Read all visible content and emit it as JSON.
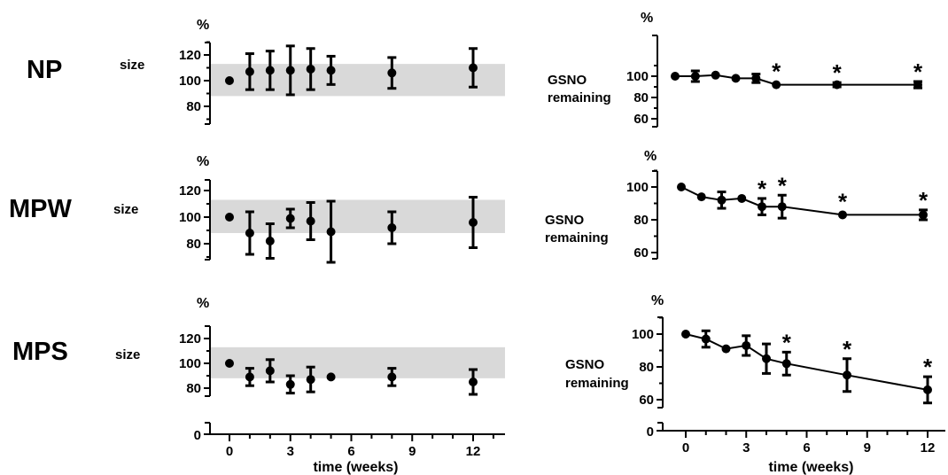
{
  "chart_data": [
    {
      "id": "np_size",
      "type": "scatter",
      "row_label": "NP",
      "ylabel": "size",
      "unit": "%",
      "ylim": [
        60,
        130
      ],
      "yticks": [
        80,
        100,
        120
      ],
      "band": [
        88,
        113
      ],
      "points": [
        {
          "x": 0,
          "y": 100,
          "err": 0
        },
        {
          "x": 1,
          "y": 107,
          "err": 14
        },
        {
          "x": 2,
          "y": 108,
          "err": 15
        },
        {
          "x": 3,
          "y": 108,
          "err": 19
        },
        {
          "x": 4,
          "y": 109,
          "err": 16
        },
        {
          "x": 5,
          "y": 108,
          "err": 11
        },
        {
          "x": 8,
          "y": 106,
          "err": 12
        },
        {
          "x": 12,
          "y": 110,
          "err": 15
        }
      ]
    },
    {
      "id": "mpw_size",
      "type": "scatter",
      "row_label": "MPW",
      "ylabel": "size",
      "unit": "%",
      "ylim": [
        60,
        130
      ],
      "yticks": [
        80,
        100,
        120
      ],
      "band": [
        88,
        113
      ],
      "points": [
        {
          "x": 0,
          "y": 100,
          "err": 0
        },
        {
          "x": 1,
          "y": 88,
          "err": 16
        },
        {
          "x": 2,
          "y": 82,
          "err": 13
        },
        {
          "x": 3,
          "y": 99,
          "err": 7
        },
        {
          "x": 4,
          "y": 97,
          "err": 14
        },
        {
          "x": 5,
          "y": 89,
          "err": 23
        },
        {
          "x": 8,
          "y": 92,
          "err": 12
        },
        {
          "x": 12,
          "y": 96,
          "err": 19
        }
      ]
    },
    {
      "id": "mps_size",
      "type": "scatter",
      "row_label": "MPS",
      "ylabel": "size",
      "unit": "%",
      "ylim": [
        60,
        130
      ],
      "yticks": [
        80,
        100,
        120
      ],
      "band": [
        88,
        113
      ],
      "points": [
        {
          "x": 0,
          "y": 100,
          "err": 0
        },
        {
          "x": 1,
          "y": 89,
          "err": 7
        },
        {
          "x": 2,
          "y": 94,
          "err": 9
        },
        {
          "x": 3,
          "y": 83,
          "err": 7
        },
        {
          "x": 4,
          "y": 87,
          "err": 10
        },
        {
          "x": 5,
          "y": 89,
          "err": 0
        },
        {
          "x": 8,
          "y": 89,
          "err": 7
        },
        {
          "x": 12,
          "y": 85,
          "err": 10
        }
      ],
      "axis_break_tick": "0",
      "xlabel": "time (weeks)",
      "xticks": [
        0,
        3,
        6,
        9,
        12
      ]
    },
    {
      "id": "np_gsno",
      "type": "line",
      "ylabel": "GSNO remaining",
      "unit": "%",
      "ylim": [
        55,
        110
      ],
      "yticks": [
        60,
        80,
        100
      ],
      "points": [
        {
          "x": 0,
          "y": 100,
          "err": 0,
          "sig": false
        },
        {
          "x": 1,
          "y": 100,
          "err": 5,
          "sig": false
        },
        {
          "x": 2,
          "y": 101,
          "err": 0,
          "sig": false
        },
        {
          "x": 3,
          "y": 98,
          "err": 0,
          "sig": false
        },
        {
          "x": 4,
          "y": 98,
          "err": 4,
          "sig": false
        },
        {
          "x": 5,
          "y": 92,
          "err": 0,
          "sig": true
        },
        {
          "x": 8,
          "y": 92,
          "err": 2,
          "sig": true
        },
        {
          "x": 12,
          "y": 92,
          "err": 3,
          "sig": true
        }
      ],
      "significance_mark": "*"
    },
    {
      "id": "mpw_gsno",
      "type": "line",
      "ylabel": "GSNO remaining",
      "unit": "%",
      "ylim": [
        55,
        110
      ],
      "yticks": [
        60,
        80,
        100
      ],
      "points": [
        {
          "x": 0,
          "y": 100,
          "err": 0,
          "sig": false
        },
        {
          "x": 1,
          "y": 94,
          "err": 0,
          "sig": false
        },
        {
          "x": 2,
          "y": 92,
          "err": 5,
          "sig": false
        },
        {
          "x": 3,
          "y": 93,
          "err": 0,
          "sig": false
        },
        {
          "x": 4,
          "y": 88,
          "err": 5,
          "sig": true
        },
        {
          "x": 5,
          "y": 88,
          "err": 7,
          "sig": true
        },
        {
          "x": 8,
          "y": 83,
          "err": 0,
          "sig": true
        },
        {
          "x": 12,
          "y": 83,
          "err": 3,
          "sig": true
        }
      ],
      "significance_mark": "*"
    },
    {
      "id": "mps_gsno",
      "type": "line",
      "ylabel": "GSNO remaining",
      "unit": "%",
      "ylim": [
        55,
        110
      ],
      "yticks": [
        60,
        80,
        100
      ],
      "points": [
        {
          "x": 0,
          "y": 100,
          "err": 0,
          "sig": false
        },
        {
          "x": 1,
          "y": 97,
          "err": 5,
          "sig": false
        },
        {
          "x": 2,
          "y": 91,
          "err": 0,
          "sig": false
        },
        {
          "x": 3,
          "y": 93,
          "err": 6,
          "sig": false
        },
        {
          "x": 4,
          "y": 85,
          "err": 9,
          "sig": false
        },
        {
          "x": 5,
          "y": 82,
          "err": 7,
          "sig": true
        },
        {
          "x": 8,
          "y": 75,
          "err": 10,
          "sig": true
        },
        {
          "x": 12,
          "y": 66,
          "err": 8,
          "sig": true
        }
      ],
      "significance_mark": "*",
      "axis_break_tick": "0",
      "xlabel": "time (weeks)",
      "xticks": [
        0,
        3,
        6,
        9,
        12
      ]
    }
  ]
}
